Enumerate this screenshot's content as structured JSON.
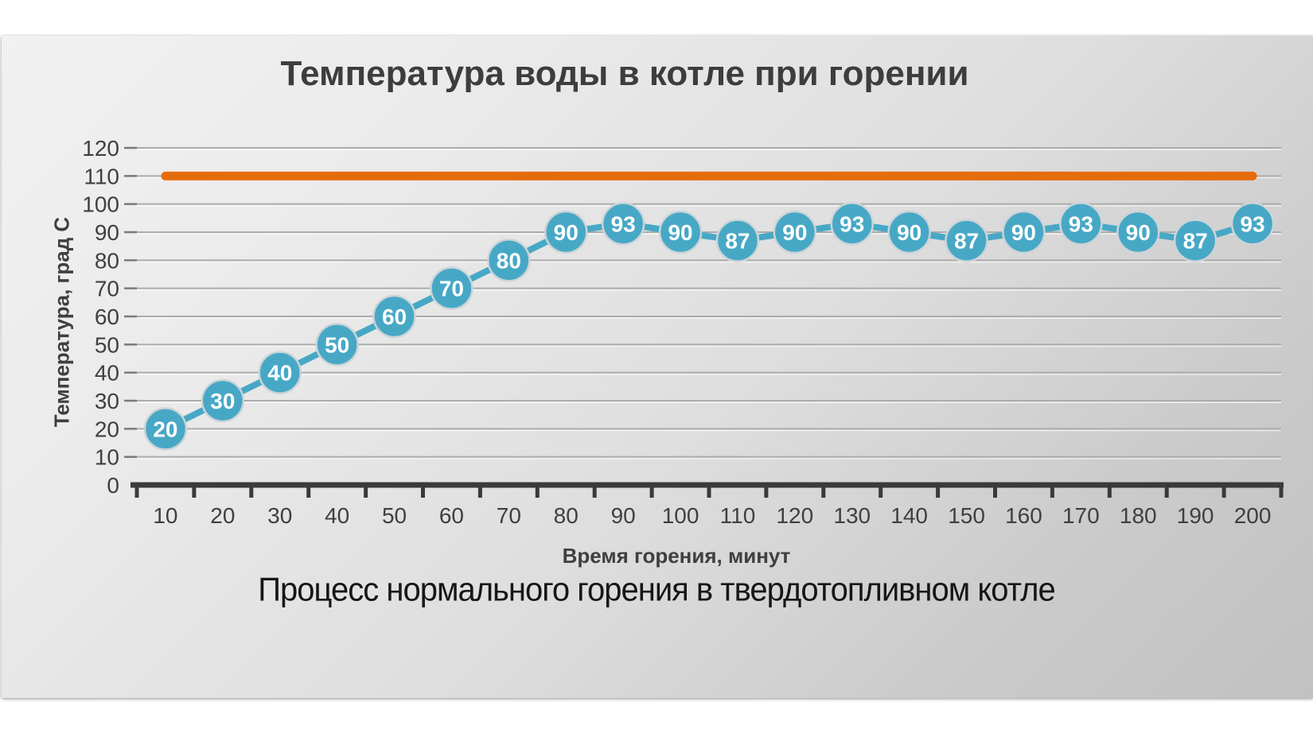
{
  "chart_data": {
    "type": "line",
    "title": "Температура воды в котле при горении",
    "xlabel": "Время горения, минут",
    "ylabel": "Температура, град С",
    "caption": "Процесс нормального горения в твердотопливном котле",
    "x": [
      10,
      20,
      30,
      40,
      50,
      60,
      70,
      80,
      90,
      100,
      110,
      120,
      130,
      140,
      150,
      160,
      170,
      180,
      190,
      200
    ],
    "series": [
      {
        "type": "hline",
        "y": 110,
        "color": "#e66c0a"
      },
      {
        "type": "line",
        "color": "#47a8c6",
        "marker_border": "#ccd4d8",
        "label_color": "#ffffff",
        "data_labels": true,
        "values": [
          20,
          30,
          40,
          50,
          60,
          70,
          80,
          90,
          93,
          90,
          87,
          90,
          93,
          90,
          87,
          90,
          93,
          90,
          87,
          93
        ]
      }
    ],
    "ylim": [
      0,
      120
    ],
    "yticks": [
      0,
      10,
      20,
      30,
      40,
      50,
      60,
      70,
      80,
      90,
      100,
      110,
      120
    ],
    "grid": "horizontal",
    "legend": "none",
    "grid_color": "#acacac",
    "axis_color": "#3a3a3a"
  }
}
